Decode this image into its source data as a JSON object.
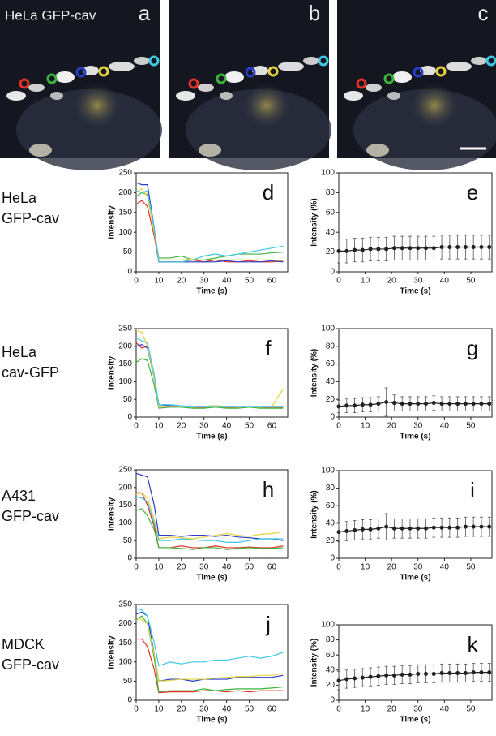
{
  "images": {
    "title": "HeLa  GFP-cav",
    "panels": [
      "a",
      "b",
      "c"
    ]
  },
  "row_labels": [
    [
      "HeLa",
      "GFP-cav"
    ],
    [
      "HeLa",
      "cav-GFP"
    ],
    [
      "A431",
      "GFP-cav"
    ],
    [
      "MDCK",
      "GFP-cav"
    ]
  ],
  "chart_data": [
    {
      "type": "line",
      "panel": "d",
      "ylabel": "Intensity",
      "xlabel": "Time (s)",
      "xlim": [
        0,
        67
      ],
      "xticks": [
        0,
        10,
        20,
        30,
        40,
        50,
        60
      ],
      "ylim": [
        0,
        250
      ],
      "yticks": [
        0,
        50,
        100,
        150,
        200,
        250
      ],
      "x": [
        0,
        2.5,
        5,
        8,
        10,
        15,
        20,
        25,
        30,
        35,
        40,
        45,
        50,
        55,
        60,
        65
      ],
      "series": [
        {
          "color": "#e0302a",
          "values": [
            170,
            180,
            165,
            90,
            25,
            25,
            25,
            30,
            25,
            30,
            25,
            25,
            28,
            25,
            25,
            27
          ]
        },
        {
          "color": "#3cb43c",
          "values": [
            190,
            200,
            195,
            100,
            35,
            35,
            40,
            30,
            30,
            35,
            40,
            45,
            45,
            45,
            48,
            50
          ]
        },
        {
          "color": "#2a3cc8",
          "values": [
            225,
            220,
            220,
            110,
            25,
            25,
            25,
            25,
            25,
            25,
            28,
            25,
            25,
            25,
            28,
            25
          ]
        },
        {
          "color": "#e6d23c",
          "values": [
            200,
            210,
            190,
            100,
            30,
            30,
            30,
            32,
            30,
            30,
            30,
            30,
            30,
            30,
            30,
            28
          ]
        },
        {
          "color": "#3cc8e6",
          "values": [
            205,
            200,
            205,
            110,
            25,
            25,
            25,
            30,
            40,
            45,
            40,
            45,
            50,
            55,
            60,
            65
          ]
        }
      ]
    },
    {
      "type": "errorbar",
      "panel": "e",
      "ylabel": "Intensity (%)",
      "xlabel": "Time (s)",
      "xlim": [
        0,
        58
      ],
      "xticks": [
        0,
        10,
        20,
        30,
        40,
        50
      ],
      "ylim": [
        0,
        100
      ],
      "yticks": [
        0,
        20,
        40,
        60,
        80,
        100
      ],
      "x": [
        0,
        3,
        6,
        9,
        12,
        15,
        18,
        21,
        24,
        27,
        30,
        33,
        36,
        39,
        42,
        45,
        48,
        51,
        54,
        57
      ],
      "series": [
        {
          "color": "#222222",
          "values": [
            21,
            21,
            22,
            22,
            23,
            23,
            23,
            24,
            24,
            24,
            24,
            24,
            24,
            25,
            25,
            25,
            25,
            25,
            25,
            25
          ],
          "errors": [
            12,
            12,
            12,
            12,
            12,
            12,
            12,
            12,
            12,
            12,
            12,
            12,
            12,
            12,
            12,
            12,
            12,
            12,
            12,
            12
          ]
        }
      ]
    },
    {
      "type": "line",
      "panel": "f",
      "ylabel": "Intensity",
      "xlabel": "Time (s)",
      "xlim": [
        0,
        67
      ],
      "xticks": [
        0,
        10,
        20,
        30,
        40,
        50,
        60
      ],
      "ylim": [
        0,
        250
      ],
      "yticks": [
        0,
        50,
        100,
        150,
        200,
        250
      ],
      "x": [
        0,
        2.5,
        5,
        8,
        10,
        15,
        20,
        25,
        30,
        35,
        40,
        45,
        50,
        55,
        60,
        65
      ],
      "series": [
        {
          "color": "#e0302a",
          "values": [
            210,
            195,
            200,
            110,
            30,
            30,
            30,
            28,
            28,
            30,
            28,
            28,
            30,
            28,
            28,
            28
          ]
        },
        {
          "color": "#3cb43c",
          "values": [
            155,
            165,
            160,
            90,
            25,
            28,
            28,
            25,
            25,
            28,
            25,
            25,
            28,
            25,
            25,
            25
          ]
        },
        {
          "color": "#2a3cc8",
          "values": [
            200,
            205,
            195,
            110,
            35,
            32,
            30,
            30,
            30,
            32,
            30,
            30,
            30,
            30,
            30,
            30
          ]
        },
        {
          "color": "#e6d23c",
          "values": [
            245,
            240,
            200,
            110,
            30,
            30,
            30,
            28,
            30,
            32,
            30,
            28,
            30,
            28,
            30,
            80
          ]
        },
        {
          "color": "#3cc8e6",
          "values": [
            225,
            215,
            210,
            120,
            35,
            35,
            32,
            30,
            30,
            30,
            30,
            30,
            30,
            30,
            30,
            30
          ]
        }
      ]
    },
    {
      "type": "errorbar",
      "panel": "g",
      "ylabel": "Intensity (%)",
      "xlabel": "Time (s)",
      "xlim": [
        0,
        58
      ],
      "xticks": [
        0,
        10,
        20,
        30,
        40,
        50
      ],
      "ylim": [
        0,
        100
      ],
      "yticks": [
        0,
        20,
        40,
        60,
        80,
        100
      ],
      "x": [
        0,
        3,
        6,
        9,
        12,
        15,
        18,
        21,
        24,
        27,
        30,
        33,
        36,
        39,
        42,
        45,
        48,
        51,
        54,
        57
      ],
      "series": [
        {
          "color": "#222222",
          "values": [
            12,
            13,
            13,
            14,
            14,
            15,
            17,
            16,
            15,
            15,
            15,
            15,
            16,
            15,
            15,
            15,
            15,
            15,
            15,
            15
          ],
          "errors": [
            7,
            8,
            8,
            8,
            8,
            8,
            16,
            9,
            8,
            8,
            8,
            8,
            8,
            8,
            8,
            8,
            8,
            8,
            8,
            8
          ]
        }
      ]
    },
    {
      "type": "line",
      "panel": "h",
      "ylabel": "Intensity",
      "xlabel": "Time (s)",
      "xlim": [
        0,
        67
      ],
      "xticks": [
        0,
        10,
        20,
        30,
        40,
        50,
        60
      ],
      "ylim": [
        0,
        250
      ],
      "yticks": [
        0,
        50,
        100,
        150,
        200,
        250
      ],
      "x": [
        0,
        2.5,
        5,
        8,
        10,
        15,
        20,
        25,
        30,
        35,
        40,
        45,
        50,
        55,
        60,
        65
      ],
      "series": [
        {
          "color": "#e0302a",
          "values": [
            185,
            185,
            150,
            90,
            30,
            30,
            35,
            30,
            30,
            35,
            30,
            30,
            32,
            30,
            30,
            35
          ]
        },
        {
          "color": "#3cb43c",
          "values": [
            135,
            140,
            120,
            80,
            30,
            30,
            28,
            25,
            30,
            30,
            25,
            28,
            30,
            28,
            28,
            30
          ]
        },
        {
          "color": "#2a3cc8",
          "values": [
            240,
            235,
            230,
            150,
            65,
            65,
            62,
            65,
            65,
            62,
            65,
            60,
            58,
            55,
            55,
            50
          ]
        },
        {
          "color": "#e6d23c",
          "values": [
            180,
            185,
            170,
            110,
            55,
            60,
            58,
            55,
            60,
            65,
            70,
            65,
            62,
            68,
            70,
            75
          ]
        },
        {
          "color": "#3cc8e6",
          "values": [
            175,
            170,
            160,
            100,
            50,
            50,
            55,
            52,
            50,
            50,
            45,
            45,
            50,
            55,
            55,
            55
          ]
        }
      ]
    },
    {
      "type": "errorbar",
      "panel": "i",
      "ylabel": "Intensity (%)",
      "xlabel": "Time (s)",
      "xlim": [
        0,
        58
      ],
      "xticks": [
        0,
        10,
        20,
        30,
        40,
        50
      ],
      "ylim": [
        0,
        100
      ],
      "yticks": [
        0,
        20,
        40,
        60,
        80,
        100
      ],
      "x": [
        0,
        3,
        6,
        9,
        12,
        15,
        18,
        21,
        24,
        27,
        30,
        33,
        36,
        39,
        42,
        45,
        48,
        51,
        54,
        57
      ],
      "series": [
        {
          "color": "#222222",
          "values": [
            30,
            31,
            32,
            33,
            33,
            34,
            36,
            34,
            34,
            34,
            34,
            34,
            35,
            35,
            35,
            35,
            36,
            36,
            36,
            36
          ],
          "errors": [
            11,
            11,
            11,
            11,
            11,
            11,
            15,
            11,
            11,
            11,
            11,
            11,
            11,
            11,
            11,
            11,
            11,
            11,
            11,
            11
          ]
        }
      ]
    },
    {
      "type": "line",
      "panel": "j",
      "ylabel": "Intensity",
      "xlabel": "Time (s)",
      "xlim": [
        0,
        67
      ],
      "xticks": [
        0,
        10,
        20,
        30,
        40,
        50,
        60
      ],
      "ylim": [
        0,
        250
      ],
      "yticks": [
        0,
        50,
        100,
        150,
        200,
        250
      ],
      "x": [
        0,
        2.5,
        5,
        8,
        10,
        15,
        20,
        25,
        30,
        35,
        40,
        45,
        50,
        55,
        60,
        65
      ],
      "series": [
        {
          "color": "#e0302a",
          "values": [
            160,
            160,
            140,
            80,
            20,
            22,
            22,
            22,
            25,
            25,
            22,
            25,
            22,
            25,
            25,
            25
          ]
        },
        {
          "color": "#3cb43c",
          "values": [
            210,
            220,
            200,
            110,
            22,
            25,
            25,
            25,
            30,
            25,
            28,
            30,
            30,
            30,
            32,
            35
          ]
        },
        {
          "color": "#2a3cc8",
          "values": [
            225,
            230,
            220,
            120,
            50,
            55,
            55,
            50,
            55,
            55,
            55,
            60,
            60,
            60,
            60,
            65
          ]
        },
        {
          "color": "#e6d23c",
          "values": [
            215,
            210,
            200,
            120,
            50,
            52,
            55,
            55,
            55,
            58,
            60,
            62,
            62,
            65,
            65,
            70
          ]
        },
        {
          "color": "#3cc8e6",
          "values": [
            240,
            235,
            220,
            150,
            90,
            100,
            95,
            100,
            100,
            105,
            105,
            110,
            115,
            110,
            115,
            125
          ]
        }
      ]
    },
    {
      "type": "errorbar",
      "panel": "k",
      "ylabel": "Intensity (%)",
      "xlabel": "Time (s)",
      "xlim": [
        0,
        58
      ],
      "xticks": [
        0,
        10,
        20,
        30,
        40,
        50
      ],
      "ylim": [
        0,
        100
      ],
      "yticks": [
        0,
        20,
        40,
        60,
        80,
        100
      ],
      "x": [
        0,
        3,
        6,
        9,
        12,
        15,
        18,
        21,
        24,
        27,
        30,
        33,
        36,
        39,
        42,
        45,
        48,
        51,
        54,
        57
      ],
      "series": [
        {
          "color": "#222222",
          "values": [
            26,
            28,
            29,
            30,
            31,
            32,
            33,
            33,
            34,
            34,
            35,
            35,
            35,
            36,
            36,
            36,
            36,
            37,
            37,
            37
          ],
          "errors": [
            12,
            12,
            12,
            12,
            12,
            12,
            12,
            12,
            12,
            12,
            12,
            12,
            12,
            12,
            12,
            12,
            12,
            12,
            12,
            12
          ]
        }
      ]
    }
  ]
}
